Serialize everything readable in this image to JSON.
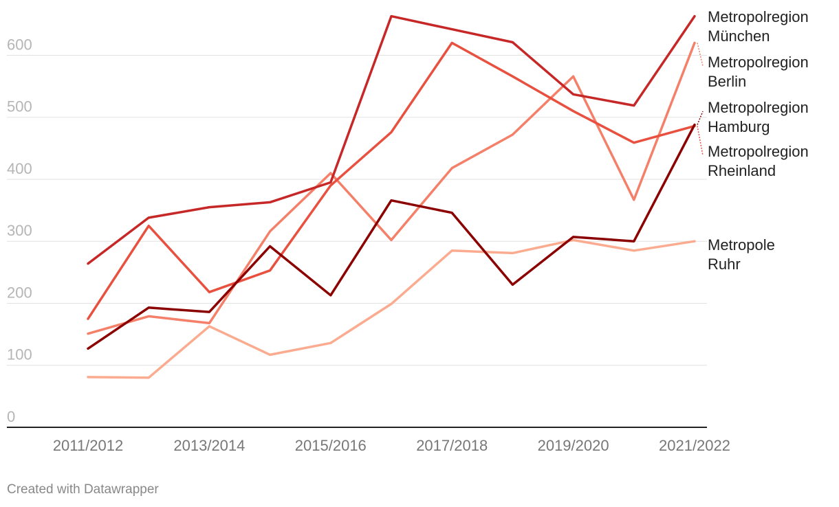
{
  "chart_data": {
    "type": "line",
    "categories": [
      "2011/2012",
      "2012/2013",
      "2013/2014",
      "2014/2015",
      "2015/2016",
      "2016/2017",
      "2017/2018",
      "2018/2019",
      "2019/2020",
      "2020/2021",
      "2021/2022"
    ],
    "x_tick_labels": [
      "2011/2012",
      "2013/2014",
      "2015/2016",
      "2017/2018",
      "2019/2020",
      "2021/2022"
    ],
    "y_ticks": [
      0,
      100,
      200,
      300,
      400,
      500,
      600
    ],
    "ylim": [
      0,
      667
    ],
    "grid": true,
    "series": [
      {
        "name": "Metropolregion München",
        "label_lines": [
          "Metropolregion",
          "München"
        ],
        "color": "#c62828",
        "values": [
          264,
          338,
          355,
          363,
          395,
          663,
          642,
          621,
          537,
          519,
          663
        ]
      },
      {
        "name": "Metropolregion Berlin",
        "label_lines": [
          "Metropolregion",
          "Berlin"
        ],
        "color": "#f4806a",
        "values": [
          151,
          179,
          168,
          316,
          410,
          302,
          418,
          472,
          566,
          367,
          620
        ]
      },
      {
        "name": "Metropolregion Hamburg",
        "label_lines": [
          "Metropolregion",
          "Hamburg"
        ],
        "color": "#8b0000",
        "values": [
          127,
          193,
          186,
          292,
          213,
          366,
          346,
          230,
          307,
          300,
          488
        ]
      },
      {
        "name": "Metropolregion Rheinland",
        "label_lines": [
          "Metropolregion",
          "Rheinland"
        ],
        "color": "#e8503f",
        "values": [
          175,
          325,
          218,
          253,
          390,
          476,
          620,
          566,
          510,
          459,
          486
        ]
      },
      {
        "name": "Metropole Ruhr",
        "label_lines": [
          "Metropole",
          "Ruhr"
        ],
        "color": "#fbab8f",
        "values": [
          81,
          80,
          163,
          117,
          136,
          199,
          285,
          281,
          302,
          285,
          300
        ]
      }
    ]
  },
  "footer": {
    "credit": "Created with Datawrapper"
  }
}
